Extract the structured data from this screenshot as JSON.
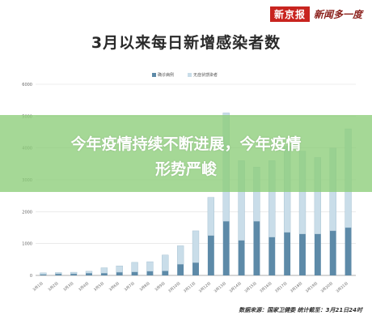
{
  "brand": {
    "logo": "新京报",
    "sub": "新闻多一度"
  },
  "title": "3月以来每日新增感染者数",
  "overlay": {
    "line1": "今年疫情持续不断进展，今年疫情",
    "line2": "形势严峻"
  },
  "source": "数据来源：国家卫健委   统计截至：3月21日24时",
  "colors": {
    "confirmed": "#5d8aa8",
    "asymptomatic": "#c9dde9",
    "grid": "#dddddd",
    "axis": "#999999"
  },
  "chart_data": {
    "type": "bar",
    "categories": [
      "3月1日",
      "3月2日",
      "3月3日",
      "3月4日",
      "3月5日",
      "3月6日",
      "3月7日",
      "3月8日",
      "3月9日",
      "3月10日",
      "3月11日",
      "3月12日",
      "3月13日",
      "3月14日",
      "3月15日",
      "3月16日",
      "3月17日",
      "3月18日",
      "3月19日",
      "3月20日",
      "3月21日"
    ],
    "series": [
      {
        "name": "确诊病例",
        "values": [
          30,
          50,
          50,
          70,
          70,
          100,
          110,
          130,
          140,
          350,
          400,
          1250,
          1700,
          1100,
          1700,
          1200,
          1350,
          1300,
          1300,
          1400,
          1500
        ]
      },
      {
        "name": "无症状感染者",
        "values": [
          50,
          40,
          50,
          60,
          170,
          200,
          300,
          300,
          500,
          580,
          1000,
          1200,
          3400,
          2500,
          1700,
          2400,
          2700,
          2600,
          2400,
          2600,
          3100
        ]
      }
    ],
    "ylim": [
      0,
      6000
    ],
    "yticks": [
      0,
      1000,
      2000,
      3000,
      4000,
      5000,
      6000
    ],
    "stacked": true,
    "legend_position": "top",
    "grid": true
  }
}
